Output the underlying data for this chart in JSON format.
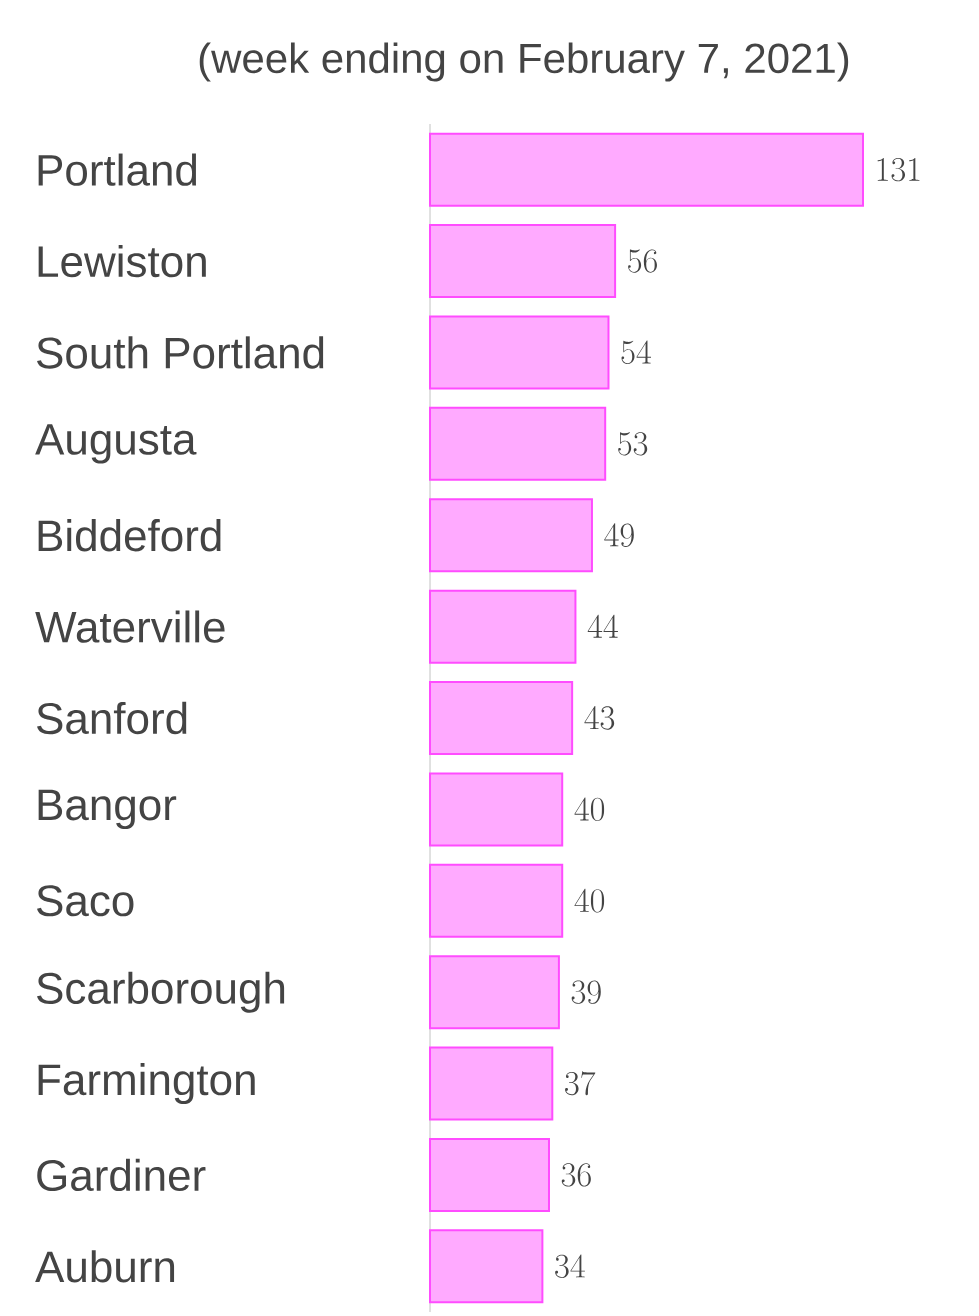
{
  "chart_data": {
    "type": "bar",
    "orientation": "horizontal",
    "title": "(week ending on February 7, 2021)",
    "categories": [
      "Portland",
      "Lewiston",
      "South Portland",
      "Augusta",
      "Biddeford",
      "Waterville",
      "Sanford",
      "Bangor",
      "Saco",
      "Scarborough",
      "Farmington",
      "Gardiner",
      "Auburn"
    ],
    "values": [
      131,
      56,
      54,
      53,
      49,
      44,
      43,
      40,
      40,
      39,
      37,
      36,
      34
    ],
    "color": "#ffaaff",
    "data_labels": true
  }
}
